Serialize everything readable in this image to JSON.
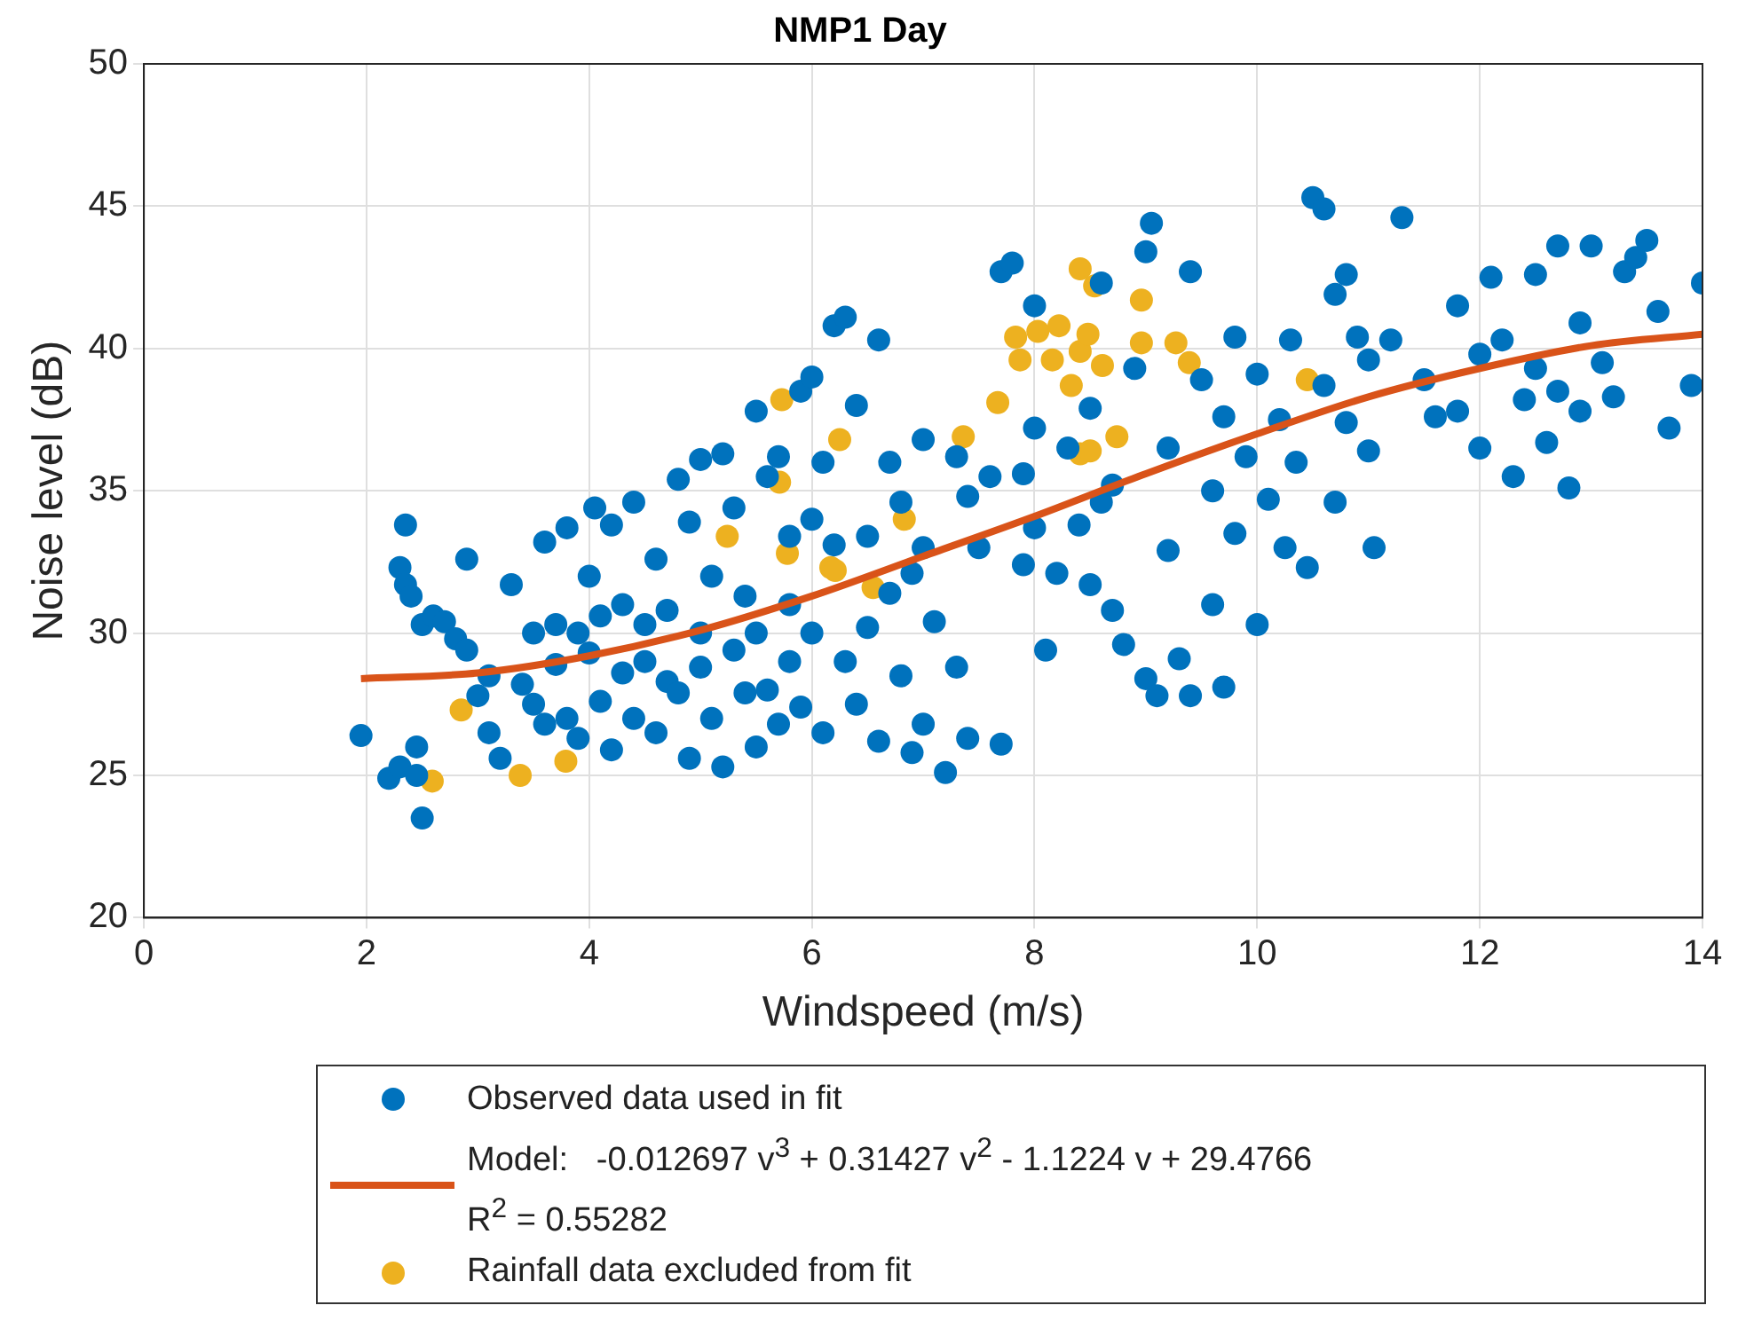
{
  "chart_data": {
    "type": "scatter",
    "title": "NMP1 Day",
    "xlabel": "Windspeed (m/s)",
    "ylabel": "Noise level (dB)",
    "xlim": [
      0,
      14
    ],
    "xticks": [
      0,
      2,
      4,
      6,
      8,
      10,
      12,
      14
    ],
    "ylim": [
      20,
      50
    ],
    "yticks": [
      20,
      25,
      30,
      35,
      40,
      45,
      50
    ],
    "grid": true,
    "legend": "bottom",
    "series": [
      {
        "name": "Observed data used in fit",
        "marker": "circle",
        "color": "#0072bd",
        "x": [
          1.95,
          2.2,
          2.3,
          2.3,
          2.35,
          2.35,
          2.4,
          2.45,
          2.45,
          2.5,
          2.5,
          2.6,
          2.7,
          2.8,
          2.9,
          2.9,
          3.0,
          3.1,
          3.1,
          3.2,
          3.3,
          3.4,
          3.5,
          3.5,
          3.6,
          3.6,
          3.7,
          3.7,
          3.8,
          3.8,
          3.9,
          3.9,
          4.0,
          4.0,
          4.05,
          4.1,
          4.1,
          4.2,
          4.2,
          4.3,
          4.3,
          4.4,
          4.4,
          4.5,
          4.5,
          4.6,
          4.6,
          4.7,
          4.7,
          4.8,
          4.8,
          4.9,
          4.9,
          5.0,
          5.0,
          5.0,
          5.1,
          5.1,
          5.2,
          5.2,
          5.3,
          5.3,
          5.4,
          5.4,
          5.5,
          5.5,
          5.5,
          5.6,
          5.6,
          5.7,
          5.7,
          5.8,
          5.8,
          5.8,
          5.9,
          5.9,
          6.0,
          6.0,
          6.0,
          6.1,
          6.1,
          6.2,
          6.2,
          6.3,
          6.3,
          6.4,
          6.4,
          6.5,
          6.5,
          6.6,
          6.6,
          6.7,
          6.7,
          6.8,
          6.8,
          6.9,
          6.9,
          7.0,
          7.0,
          7.0,
          7.1,
          7.2,
          7.3,
          7.3,
          7.4,
          7.4,
          7.5,
          7.6,
          7.7,
          7.8,
          7.7,
          7.9,
          7.9,
          8.0,
          8.0,
          8.0,
          8.1,
          8.2,
          8.3,
          8.4,
          8.5,
          8.5,
          8.6,
          8.6,
          8.7,
          8.7,
          8.8,
          8.9,
          9.0,
          9.0,
          9.05,
          9.1,
          9.2,
          9.2,
          9.3,
          9.4,
          9.4,
          9.5,
          9.6,
          9.6,
          9.7,
          9.7,
          9.8,
          9.8,
          9.9,
          10.0,
          10.0,
          10.1,
          10.2,
          10.25,
          10.3,
          10.35,
          10.45,
          10.5,
          10.6,
          10.6,
          10.7,
          10.7,
          10.8,
          10.8,
          10.9,
          11.0,
          11.0,
          11.05,
          11.2,
          11.3,
          11.5,
          11.6,
          11.8,
          11.8,
          12.0,
          12.0,
          12.1,
          12.2,
          12.3,
          12.4,
          12.5,
          12.5,
          12.6,
          12.7,
          12.7,
          12.8,
          12.9,
          12.9,
          13.0,
          13.1,
          13.2,
          13.3,
          13.4,
          13.5,
          13.6,
          13.7,
          13.9,
          14.0
        ],
        "values": [
          26.4,
          24.9,
          25.3,
          32.3,
          33.8,
          31.7,
          31.3,
          26.0,
          25.0,
          23.5,
          30.3,
          30.6,
          30.4,
          29.8,
          32.6,
          29.4,
          27.8,
          28.5,
          26.5,
          25.6,
          31.7,
          28.2,
          30.0,
          27.5,
          33.2,
          26.8,
          30.3,
          28.9,
          33.7,
          27.0,
          30.0,
          26.3,
          29.3,
          32.0,
          34.4,
          30.6,
          27.6,
          33.8,
          25.9,
          31.0,
          28.6,
          34.6,
          27.0,
          30.3,
          29.0,
          32.6,
          26.5,
          28.3,
          30.8,
          35.4,
          27.9,
          33.9,
          25.6,
          30.0,
          28.8,
          36.1,
          27.0,
          32.0,
          36.3,
          25.3,
          29.4,
          34.4,
          31.3,
          27.9,
          37.8,
          26.0,
          30.0,
          35.5,
          28.0,
          36.2,
          26.8,
          33.4,
          31.0,
          29.0,
          38.5,
          27.4,
          34.0,
          30.0,
          39.0,
          36.0,
          26.5,
          33.1,
          40.8,
          41.1,
          29.0,
          38.0,
          27.5,
          33.4,
          30.2,
          40.3,
          26.2,
          36.0,
          31.4,
          34.6,
          28.5,
          32.1,
          25.8,
          36.8,
          33.0,
          26.8,
          30.4,
          25.1,
          36.2,
          28.8,
          34.8,
          26.3,
          33.0,
          35.5,
          42.7,
          43.0,
          26.1,
          35.6,
          32.4,
          41.5,
          37.2,
          33.7,
          29.4,
          32.1,
          36.5,
          33.8,
          31.7,
          37.9,
          42.3,
          34.6,
          30.8,
          35.2,
          29.6,
          39.3,
          28.4,
          43.4,
          44.4,
          27.8,
          32.9,
          36.5,
          29.1,
          27.8,
          42.7,
          38.9,
          35.0,
          31.0,
          28.1,
          37.6,
          40.4,
          33.5,
          36.2,
          39.1,
          30.3,
          34.7,
          37.5,
          33.0,
          40.3,
          36.0,
          32.3,
          45.3,
          44.9,
          38.7,
          41.9,
          34.6,
          42.6,
          37.4,
          40.4,
          36.4,
          39.6,
          33.0,
          40.3,
          44.6,
          38.9,
          37.6,
          41.5,
          37.8,
          39.8,
          36.5,
          42.5,
          40.3,
          35.5,
          38.2,
          42.6,
          39.3,
          36.7,
          43.6,
          38.5,
          35.1,
          40.9,
          37.8,
          43.6,
          39.5,
          38.3,
          42.7,
          43.2,
          43.8,
          41.3,
          37.2,
          38.7,
          42.3
        ]
      },
      {
        "name": "Model:   -0.012697 v$^{3}$ + 0.31427 v$^{2}$ - 1.1224 v + 29.4766\nR$^{2}$ = 0.55282",
        "type": "line",
        "marker": "none",
        "line_style": "solid",
        "color": "#d95319",
        "x": [
          1.95,
          3,
          4,
          5,
          6,
          7,
          8,
          9,
          10,
          11,
          12,
          13,
          14
        ],
        "values": [
          28.4,
          28.6,
          29.2,
          30.1,
          31.3,
          32.7,
          34.1,
          35.6,
          37.0,
          38.3,
          39.3,
          40.1,
          40.5
        ]
      },
      {
        "name": "Rainfall data excluded from fit",
        "marker": "circle",
        "color": "#edb120",
        "x": [
          2.59,
          2.85,
          3.38,
          3.79,
          5.73,
          5.71,
          5.78,
          5.24,
          6.17,
          6.21,
          6.25,
          6.55,
          6.83,
          7.36,
          7.67,
          7.83,
          7.87,
          8.03,
          8.22,
          8.16,
          8.33,
          8.41,
          8.48,
          8.41,
          8.5,
          8.41,
          8.54,
          8.61,
          8.74,
          8.96,
          8.96,
          9.27,
          9.39,
          10.45
        ],
        "values": [
          24.8,
          27.3,
          25.0,
          25.5,
          38.2,
          35.3,
          32.8,
          33.4,
          32.3,
          32.2,
          36.8,
          31.6,
          34.0,
          36.9,
          38.1,
          40.4,
          39.6,
          40.6,
          40.8,
          39.6,
          38.7,
          39.9,
          40.5,
          36.3,
          36.4,
          42.8,
          42.2,
          39.4,
          36.9,
          40.2,
          41.7,
          40.2,
          39.5,
          38.9
        ]
      }
    ]
  }
}
